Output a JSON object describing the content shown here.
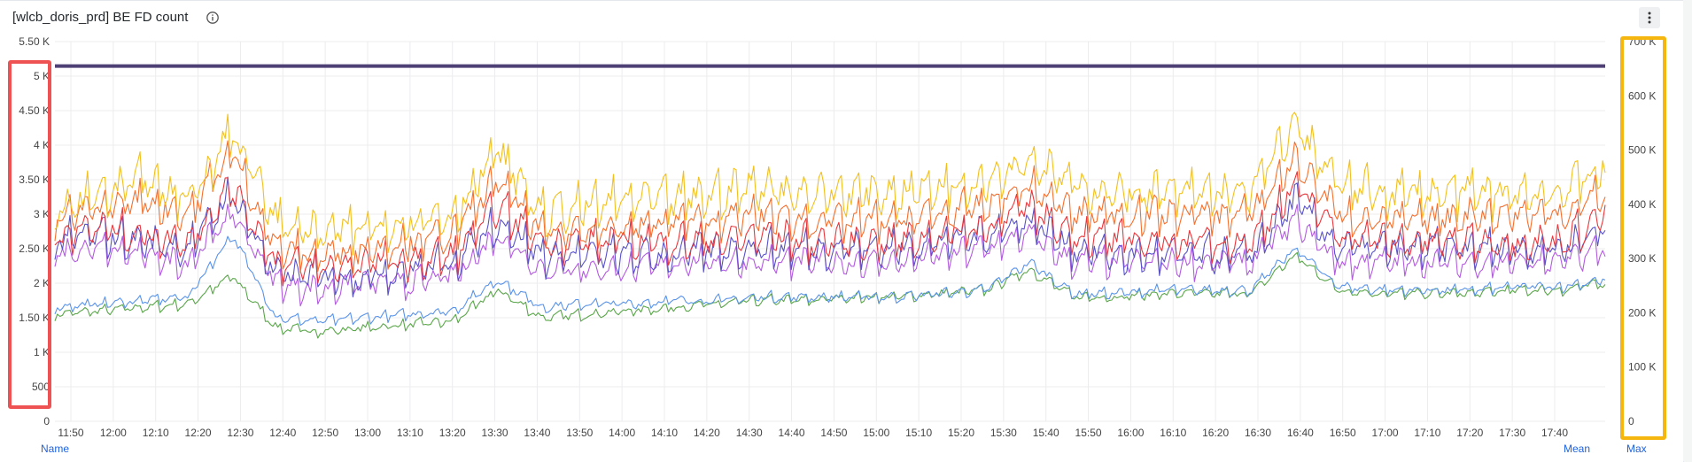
{
  "panel": {
    "title": "[wlcb_doris_prd] BE FD count",
    "info_icon": "info-circle-icon",
    "menu_icon": "kebab-menu-icon"
  },
  "legend": {
    "name_label": "Name",
    "mean_label": "Mean",
    "max_label": "Max"
  },
  "colors": {
    "limit_line": "#4e3f74",
    "series": [
      "#f2c01e",
      "#f5702e",
      "#e8373c",
      "#5a53c8",
      "#b35ce0",
      "#5a94ea",
      "#5aa64a"
    ],
    "left_highlight": "#ef5252",
    "right_highlight": "#f5b70f",
    "grid": "#ececef"
  },
  "chart_data": {
    "type": "line",
    "x_ticks": [
      "11:50",
      "12:00",
      "12:10",
      "12:20",
      "12:30",
      "12:40",
      "12:50",
      "13:00",
      "13:10",
      "13:20",
      "13:30",
      "13:40",
      "13:50",
      "14:00",
      "14:10",
      "14:20",
      "14:30",
      "14:40",
      "14:50",
      "15:00",
      "15:10",
      "15:20",
      "15:30",
      "15:40",
      "15:50",
      "16:00",
      "16:10",
      "16:20",
      "16:30",
      "16:40",
      "16:50",
      "17:00",
      "17:10",
      "17:20",
      "17:30",
      "17:40"
    ],
    "left_axis": {
      "ticks": [
        "0",
        "500",
        "1 K",
        "1.50 K",
        "2 K",
        "2.50 K",
        "3 K",
        "3.50 K",
        "4 K",
        "4.50 K",
        "5 K",
        "5.50 K"
      ],
      "ylim": [
        0,
        5500
      ]
    },
    "right_axis": {
      "ticks": [
        "0",
        "100 K",
        "200 K",
        "300 K",
        "400 K",
        "500 K",
        "600 K",
        "700 K"
      ],
      "ylim": [
        0,
        700000
      ]
    },
    "grid": true,
    "limit_line": {
      "axis": "right",
      "value": 655000
    },
    "series_approx": [
      {
        "axis": "left",
        "base": [
          3000,
          3300,
          3500,
          3200,
          4200,
          2900,
          2700,
          2800,
          2900,
          3000,
          3900,
          3000,
          3100,
          3200,
          3200,
          3300,
          3400,
          3300,
          3300,
          3300,
          3400,
          3500,
          3800,
          3400,
          3300,
          3300,
          3300,
          3300,
          4300,
          3400,
          3300,
          3300,
          3300,
          3300,
          3300,
          3700
        ],
        "amp": 300
      },
      {
        "axis": "left",
        "base": [
          2900,
          3100,
          3200,
          3000,
          3900,
          2500,
          2400,
          2500,
          2600,
          2700,
          3500,
          2700,
          2800,
          2800,
          2900,
          2900,
          3000,
          2900,
          2900,
          2900,
          3000,
          3100,
          3400,
          3000,
          3000,
          3000,
          3000,
          3000,
          3800,
          3000,
          2900,
          2900,
          3000,
          3000,
          3000,
          3300
        ],
        "amp": 250
      },
      {
        "axis": "left",
        "base": [
          2700,
          2800,
          2700,
          2600,
          3400,
          2300,
          2200,
          2300,
          2300,
          2400,
          3100,
          2600,
          2600,
          2600,
          2600,
          2600,
          2700,
          2600,
          2600,
          2600,
          2700,
          2800,
          3100,
          2700,
          2600,
          2600,
          2600,
          2600,
          3400,
          2700,
          2600,
          2600,
          2600,
          2600,
          2600,
          3000
        ],
        "amp": 250
      },
      {
        "axis": "left",
        "base": [
          2600,
          2700,
          2600,
          2500,
          3300,
          2100,
          2100,
          2100,
          2200,
          2300,
          2900,
          2400,
          2400,
          2400,
          2400,
          2500,
          2500,
          2500,
          2500,
          2500,
          2600,
          2700,
          2900,
          2500,
          2400,
          2400,
          2400,
          2400,
          3200,
          2500,
          2500,
          2500,
          2500,
          2500,
          2500,
          2800
        ],
        "amp": 250
      },
      {
        "axis": "left",
        "base": [
          2400,
          2500,
          2400,
          2300,
          3000,
          2000,
          1900,
          2000,
          2000,
          2100,
          2700,
          2200,
          2200,
          2200,
          2300,
          2300,
          2300,
          2300,
          2300,
          2300,
          2400,
          2500,
          2700,
          2300,
          2300,
          2300,
          2300,
          2300,
          2900,
          2300,
          2300,
          2300,
          2300,
          2300,
          2300,
          2500
        ],
        "amp": 200
      },
      {
        "axis": "left",
        "base": [
          1650,
          1700,
          1750,
          1800,
          2700,
          1500,
          1450,
          1500,
          1550,
          1600,
          2050,
          1650,
          1700,
          1700,
          1750,
          1750,
          1800,
          1800,
          1800,
          1800,
          1850,
          1900,
          2300,
          1850,
          1850,
          1900,
          1900,
          1900,
          2500,
          1950,
          1900,
          1900,
          1900,
          1950,
          1950,
          2050
        ],
        "amp": 70
      },
      {
        "axis": "left",
        "base": [
          1550,
          1600,
          1650,
          1700,
          2100,
          1350,
          1300,
          1350,
          1400,
          1450,
          1900,
          1500,
          1550,
          1600,
          1650,
          1700,
          1750,
          1750,
          1800,
          1800,
          1850,
          1900,
          2200,
          1800,
          1800,
          1850,
          1850,
          1850,
          2400,
          1900,
          1850,
          1850,
          1850,
          1900,
          1900,
          2000
        ],
        "amp": 70
      }
    ]
  }
}
